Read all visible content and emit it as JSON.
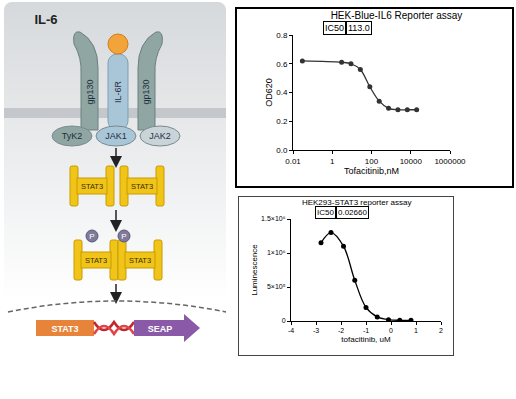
{
  "diagram": {
    "cytokine": "IL-6",
    "receptors": [
      "gp130",
      "IL-6R",
      "gp130"
    ],
    "kinases": [
      "TyK2",
      "JAK1",
      "JAK2"
    ],
    "monomers": [
      "STAT3",
      "STAT3"
    ],
    "dimer": {
      "subunits": [
        "STAT3",
        "STAT3"
      ],
      "phospho": [
        "P",
        "P"
      ]
    },
    "promoter": "STAT3",
    "reporter": "SEAP"
  },
  "chart_data": [
    {
      "type": "line",
      "title": "HEK-Blue-IL6 Reporter assay",
      "x_label": "Tofacitinib,nM",
      "y_label": "OD620",
      "annotations": [
        "IC50",
        "113.0"
      ],
      "x": [
        0.03,
        3,
        9,
        27,
        82,
        247,
        741,
        2222,
        6667,
        20000
      ],
      "values": [
        0.62,
        0.61,
        0.6,
        0.56,
        0.44,
        0.34,
        0.29,
        0.28,
        0.28,
        0.28
      ],
      "color": "#333333",
      "marker": "circle",
      "line_style": "smooth",
      "log": "x",
      "xlim": [
        0.01,
        1000000
      ],
      "xticks": [
        0.01,
        1,
        100,
        10000,
        1000000
      ],
      "ylim": [
        0,
        0.8
      ],
      "yticks": [
        {
          "value": 0,
          "label": "0.0"
        },
        0.2,
        0.4,
        0.6,
        0.8
      ],
      "grid": false
    },
    {
      "type": "line",
      "title": "HEK293-STAT3 reporter assay",
      "x_label": "tofacitinib, uM",
      "y_label": "Luminescence",
      "annotations": [
        "IC50",
        "0.02660"
      ],
      "x": [
        -2.8,
        -2.4,
        -1.9,
        -1.45,
        -1.0,
        -0.55,
        -0.1,
        0.35,
        0.8
      ],
      "values": [
        1150000,
        1300000,
        1100000,
        600000,
        200000,
        60000,
        20000,
        10000,
        10000
      ],
      "color": "#000000",
      "marker": "circle",
      "line_style": "smooth",
      "xlim": [
        -4,
        2
      ],
      "xticks": [
        -4,
        -3,
        -2,
        -1,
        0,
        1,
        2
      ],
      "ylim": [
        0,
        1500000
      ],
      "yticks": [
        0,
        {
          "value": 500000,
          "label": "5×10⁵"
        },
        {
          "value": 1000000,
          "label": "1×10⁶"
        },
        {
          "value": 1500000,
          "label": "1.5×10⁶"
        }
      ],
      "grid": false
    }
  ]
}
